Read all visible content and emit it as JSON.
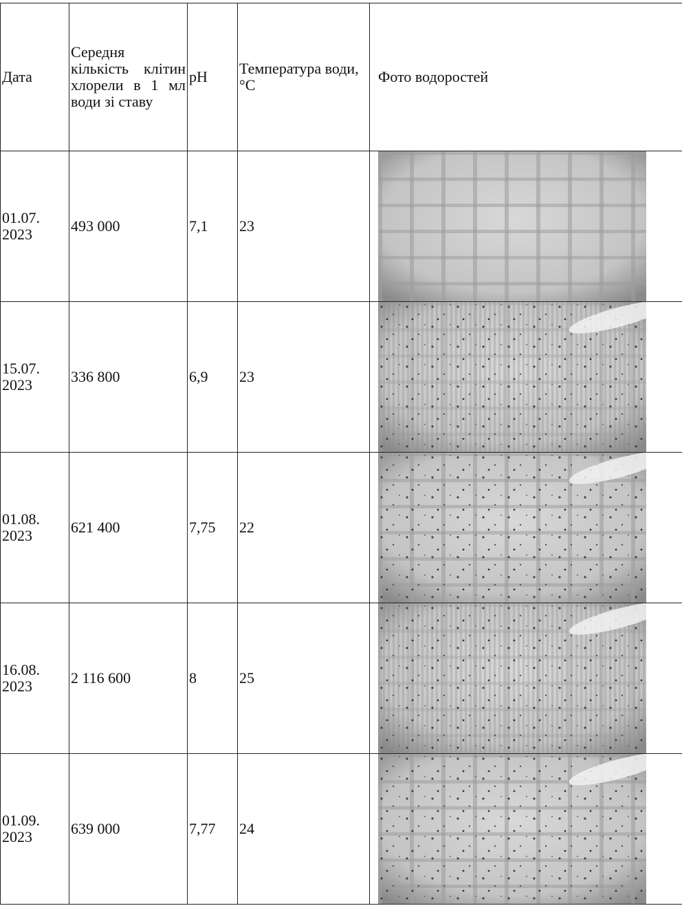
{
  "table": {
    "header": [
      "Дата",
      "Середня кількість клітин хлорели в 1 мл води зі ставу",
      "pH",
      "Температура води, °С",
      "Фото водоростей"
    ],
    "rows": [
      [
        "01.07.2023",
        "493 000",
        "7,1",
        "23"
      ],
      [
        "15.07.2023",
        "336 800",
        "6,9",
        "23"
      ],
      [
        "01.08.2023",
        "621 400",
        "7,75",
        "22"
      ],
      [
        "16.08.2023",
        "2 116 600",
        "8",
        "25"
      ],
      [
        "01.09.2023",
        "639 000",
        "7,77",
        "24"
      ]
    ]
  }
}
